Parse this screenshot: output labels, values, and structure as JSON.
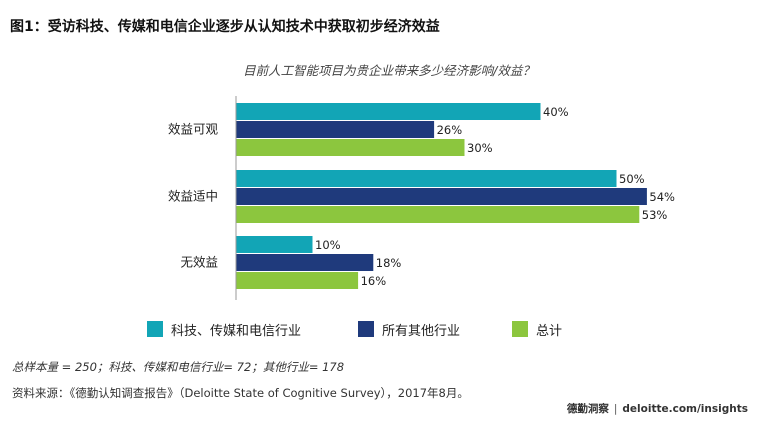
{
  "figure_title": "图1：受访科技、传媒和电信企业逐步从认知技术中获取初步经济效益",
  "chart_data": {
    "type": "bar",
    "orientation": "horizontal",
    "title": "目前人工智能项目为贵企业带来多少经济影响/效益？",
    "categories": [
      "效益可观",
      "效益适中",
      "无效益"
    ],
    "series": [
      {
        "name": "科技、传媒和电信行业",
        "color": "#12a5b6",
        "values": [
          40,
          50,
          10
        ]
      },
      {
        "name": "所有其他行业",
        "color": "#1f3a7c",
        "values": [
          26,
          54,
          18
        ]
      },
      {
        "name": "总计",
        "color": "#8cc63e",
        "values": [
          30,
          53,
          16
        ]
      }
    ],
    "value_suffix": "%",
    "xlim": [
      0,
      60
    ],
    "legend_position": "bottom"
  },
  "note": "总样本量 = 250；科技、传媒和电信行业= 72；其他行业= 178",
  "source": "资料来源：《德勤认知调查报告》（Deloitte State of Cognitive Survey），2017年8月。",
  "brand": {
    "name": "德勤洞察",
    "separator": "|",
    "url": "deloitte.com/insights"
  }
}
